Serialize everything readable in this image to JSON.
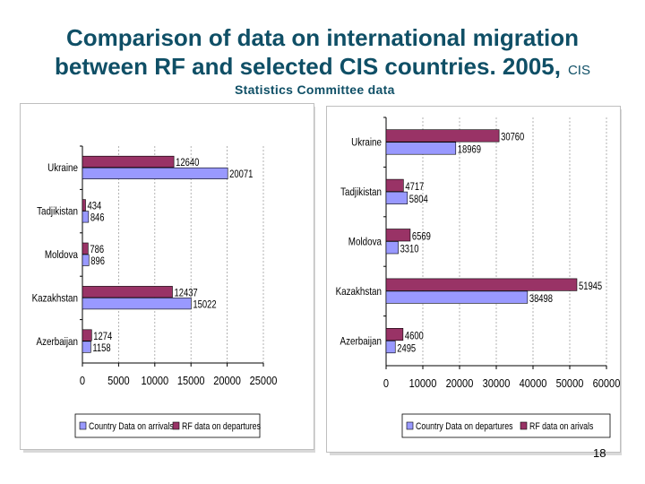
{
  "header": {
    "title_line1": "Comparison of data on  international migration",
    "title_line2": "between RF and selected CIS countries. 2005,",
    "title_suffix": "CIS",
    "subtitle": "Statistics Committee data"
  },
  "page_number": "18",
  "colors": {
    "title": "#0f4f66",
    "series_blue": "#9999ff",
    "series_maroon": "#993366"
  },
  "chart_data": [
    {
      "type": "bar",
      "orientation": "horizontal",
      "categories": [
        "Ukraine",
        "Tadjikistan",
        "Moldova",
        "Kazakhstan",
        "Azerbaijan"
      ],
      "series": [
        {
          "name": "RF data on departures",
          "values": [
            12640,
            434,
            786,
            12437,
            1274
          ],
          "color": "#993366"
        },
        {
          "name": "Country Data on arrivals",
          "values": [
            20071,
            846,
            896,
            15022,
            1158
          ],
          "color": "#9999ff"
        }
      ],
      "legend_order": [
        "Country Data on arrivals",
        "RF data on departures"
      ],
      "xlim": [
        0,
        25000
      ],
      "xticks": [
        0,
        5000,
        10000,
        15000,
        20000,
        25000
      ],
      "grid": true,
      "legend_position": "bottom"
    },
    {
      "type": "bar",
      "orientation": "horizontal",
      "categories": [
        "Ukraine",
        "Tadjikistan",
        "Moldova",
        "Kazakhstan",
        "Azerbaijan"
      ],
      "series": [
        {
          "name": "RF data on arrivals",
          "values": [
            30760,
            4717,
            6569,
            51945,
            4600
          ],
          "color": "#993366"
        },
        {
          "name": "Country Data on departures",
          "values": [
            18969,
            5804,
            3310,
            38498,
            2495
          ],
          "color": "#9999ff"
        }
      ],
      "legend_order": [
        "Country Data on departures",
        "RF data on arivals"
      ],
      "legend_labels": [
        "Country Data on departures",
        "RF data on arivals"
      ],
      "xlim": [
        0,
        60000
      ],
      "xticks": [
        0,
        10000,
        20000,
        30000,
        40000,
        50000,
        60000
      ],
      "grid": true,
      "legend_position": "bottom"
    }
  ]
}
